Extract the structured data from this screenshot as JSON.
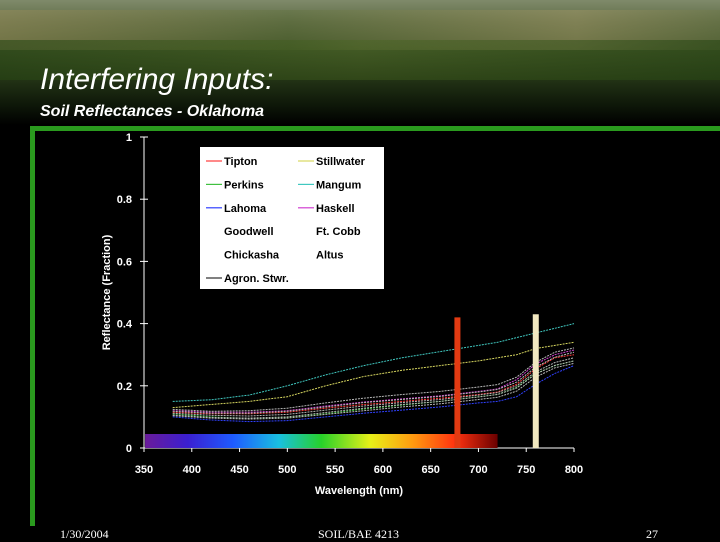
{
  "slide": {
    "title": "Interfering Inputs:",
    "subtitle": "Soil Reflectances - Oklahoma",
    "footer": {
      "date": "1/30/2004",
      "course": "SOIL/BAE 4213",
      "page": "27"
    }
  },
  "colors": {
    "accent": "#2a9a1e",
    "red_band": "#e23a12",
    "nir_band": "#f1e8c0"
  },
  "chart_data": {
    "type": "line",
    "xlabel": "Wavelength (nm)",
    "ylabel": "Reflectance (Fraction)",
    "xlim": [
      350,
      800
    ],
    "ylim": [
      0,
      1
    ],
    "xticks": [
      "350",
      "400",
      "450",
      "500",
      "550",
      "600",
      "650",
      "700",
      "750",
      "800"
    ],
    "yticks": [
      "0",
      "0.2",
      "0.4",
      "0.6",
      "0.8",
      "1"
    ],
    "grid": false,
    "legend_position": "top",
    "highlight_bands": [
      {
        "x": 678,
        "color": "#e23a12",
        "y_top": 0.42
      },
      {
        "x": 760,
        "color": "#f1e8c0",
        "y_top": 0.43
      }
    ],
    "spectrum_strip": {
      "x_start": 370,
      "x_end": 720
    },
    "x": [
      380,
      420,
      460,
      500,
      540,
      580,
      620,
      660,
      700,
      720,
      740,
      760,
      780,
      800
    ],
    "series": [
      {
        "name": "Tipton",
        "color": "#ff3b3b",
        "values": [
          0.115,
          0.11,
          0.11,
          0.115,
          0.128,
          0.14,
          0.15,
          0.16,
          0.172,
          0.18,
          0.205,
          0.255,
          0.29,
          0.3
        ]
      },
      {
        "name": "Stillwater",
        "color": "#d8d860",
        "values": [
          0.13,
          0.14,
          0.15,
          0.165,
          0.2,
          0.23,
          0.25,
          0.265,
          0.28,
          0.29,
          0.3,
          0.32,
          0.33,
          0.34
        ]
      },
      {
        "name": "Perkins",
        "color": "#40c040",
        "values": [
          0.11,
          0.1,
          0.095,
          0.098,
          0.11,
          0.125,
          0.138,
          0.15,
          0.165,
          0.172,
          0.195,
          0.24,
          0.265,
          0.28
        ]
      },
      {
        "name": "Mangum",
        "color": "#40c8c0",
        "values": [
          0.15,
          0.155,
          0.17,
          0.2,
          0.235,
          0.265,
          0.29,
          0.31,
          0.33,
          0.34,
          0.355,
          0.37,
          0.385,
          0.4
        ]
      },
      {
        "name": "Lahoma",
        "color": "#3040ff",
        "values": [
          0.1,
          0.09,
          0.085,
          0.088,
          0.1,
          0.112,
          0.122,
          0.132,
          0.145,
          0.15,
          0.165,
          0.205,
          0.24,
          0.265
        ]
      },
      {
        "name": "Haskell",
        "color": "#d040d0",
        "values": [
          0.12,
          0.115,
          0.115,
          0.12,
          0.135,
          0.148,
          0.158,
          0.168,
          0.182,
          0.19,
          0.22,
          0.27,
          0.3,
          0.315
        ]
      },
      {
        "name": "Goodwell",
        "color": "#000000",
        "values": [
          0.112,
          0.105,
          0.103,
          0.108,
          0.122,
          0.135,
          0.146,
          0.156,
          0.17,
          0.178,
          0.2,
          0.245,
          0.275,
          0.29
        ]
      },
      {
        "name": "Ft. Cobb",
        "color": "#000000",
        "values": [
          0.106,
          0.098,
          0.096,
          0.1,
          0.114,
          0.128,
          0.14,
          0.15,
          0.164,
          0.172,
          0.193,
          0.238,
          0.266,
          0.28
        ]
      },
      {
        "name": "Chickasha",
        "color": "#000000",
        "values": [
          0.118,
          0.112,
          0.112,
          0.118,
          0.132,
          0.146,
          0.156,
          0.166,
          0.18,
          0.188,
          0.212,
          0.26,
          0.292,
          0.308
        ]
      },
      {
        "name": "Altus",
        "color": "#000000",
        "values": [
          0.124,
          0.118,
          0.12,
          0.128,
          0.145,
          0.16,
          0.172,
          0.182,
          0.196,
          0.204,
          0.228,
          0.276,
          0.308,
          0.322
        ]
      },
      {
        "name": "Agron. Stwr.",
        "color": "#000000",
        "values": [
          0.104,
          0.096,
          0.093,
          0.096,
          0.108,
          0.12,
          0.132,
          0.142,
          0.156,
          0.163,
          0.183,
          0.228,
          0.258,
          0.272
        ]
      }
    ]
  }
}
